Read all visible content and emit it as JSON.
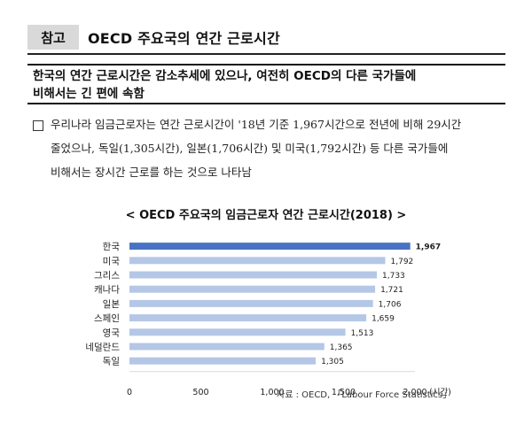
{
  "header": {
    "badge": "참고",
    "title": "OECD 주요국의 연간 근로시간"
  },
  "summary": {
    "line1": "한국의 연간 근로시간은 감소추세에 있으나, 여전히 OECD의 다른 국가들에",
    "line2": "비해서는 긴 편에 속함"
  },
  "body": {
    "line1": "우리나라 임금근로자는 연간 근로시간이 '18년 기준 1,967시간으로 전년에 비해 29시간",
    "line2": "줄었으나, 독일(1,305시간), 일본(1,706시간) 및 미국(1,792시간) 등 다른 국가들에",
    "line3": "비해서는 장시간 근로를 하는 것으로 나타남"
  },
  "chart_data": {
    "type": "bar",
    "orientation": "horizontal",
    "title": "< OECD 주요국의 임금근로자 연간 근로시간(2018) >",
    "categories": [
      "한국",
      "미국",
      "그리스",
      "캐나다",
      "일본",
      "스페인",
      "영국",
      "네덜란드",
      "독일"
    ],
    "values": [
      1967,
      1792,
      1733,
      1721,
      1706,
      1659,
      1513,
      1365,
      1305
    ],
    "value_labels": [
      "1,967",
      "1,792",
      "1,733",
      "1,721",
      "1,706",
      "1,659",
      "1,513",
      "1,365",
      "1,305"
    ],
    "xlim": [
      0,
      2000
    ],
    "xticks": [
      "0",
      "500",
      "1,000",
      "1,500",
      "2,000"
    ],
    "xunit": "(시간)",
    "highlight_category": "한국",
    "colors": {
      "highlight": "#4a72c4",
      "bar": "#b5c7e6",
      "axis": "#d9d9d9"
    },
    "source": "자료 : OECD, 「Labour Force Statistics」"
  }
}
